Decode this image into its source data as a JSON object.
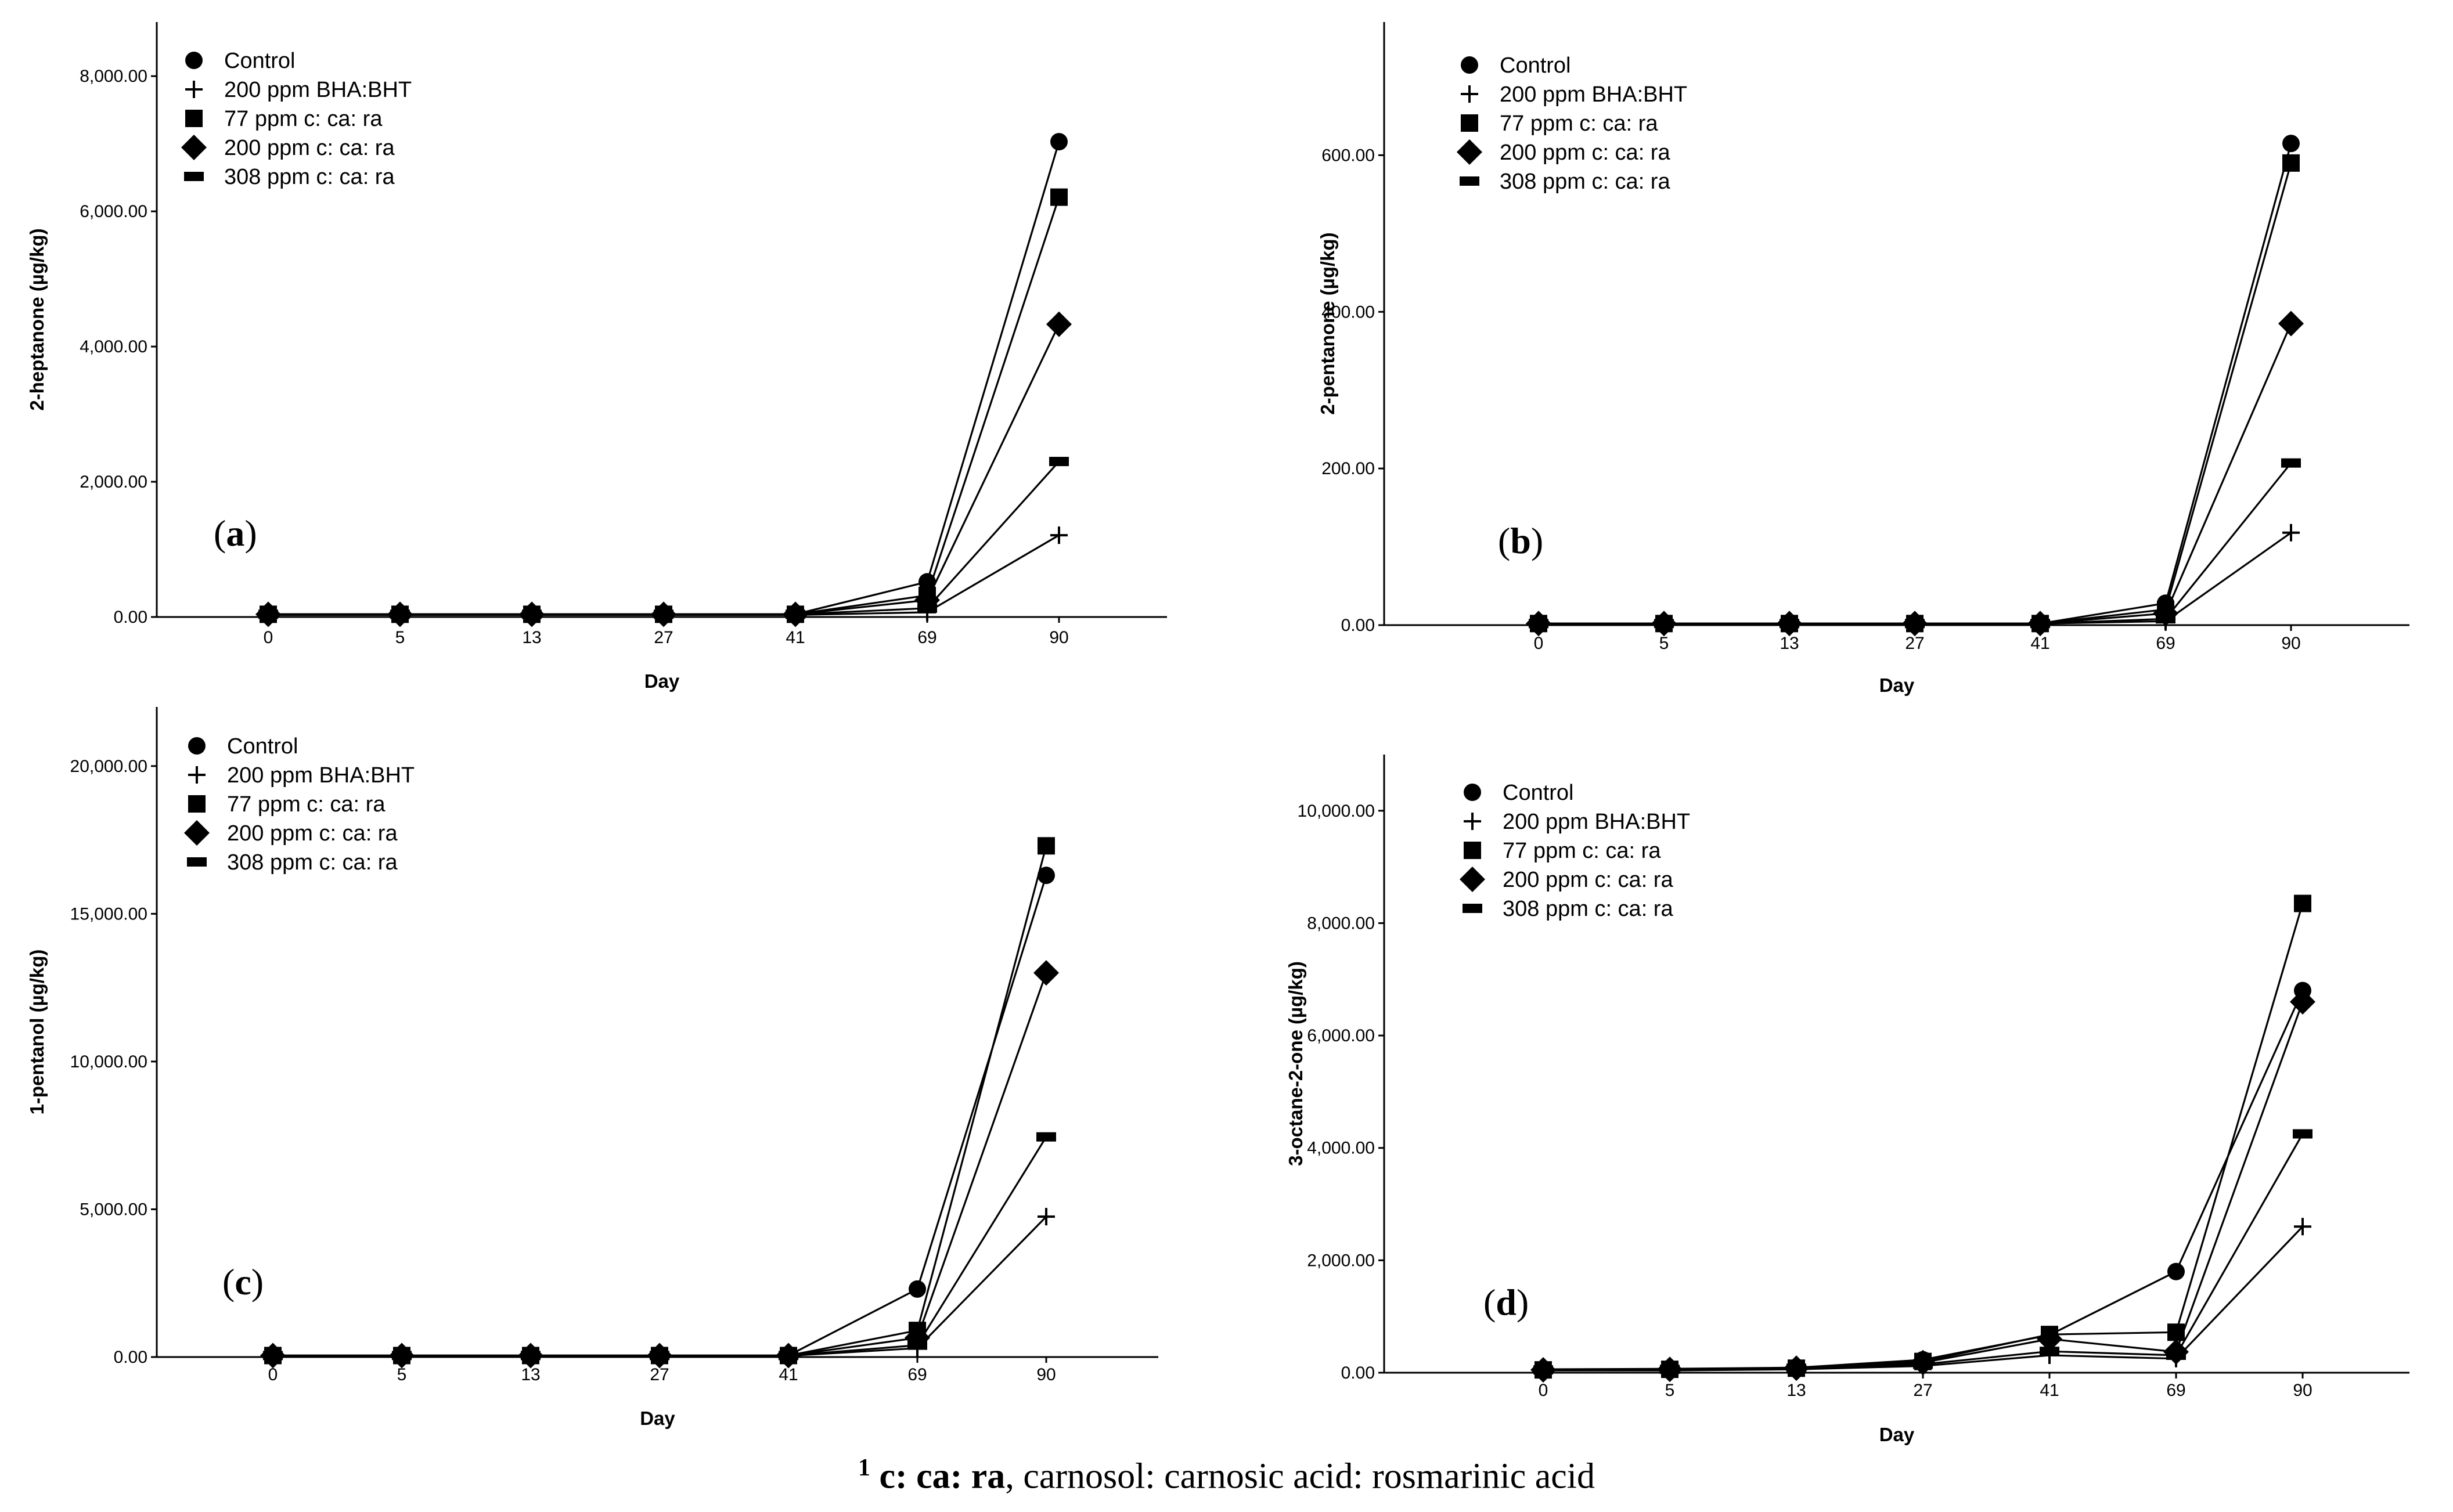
{
  "chart_data": [
    {
      "type": "line",
      "panel": "(a)",
      "panel_letter": "a",
      "xlabel": "Day",
      "ylabel": "2-heptanone (µg/kg)",
      "categories": [
        "0",
        "5",
        "13",
        "27",
        "41",
        "69",
        "90"
      ],
      "ylim": [
        0,
        8800
      ],
      "yticks": [
        0,
        2000,
        4000,
        6000,
        8000
      ],
      "ytick_labels": [
        "0.00",
        "2,000.00",
        "4,000.00",
        "6,000.00",
        "8,000.00"
      ],
      "legend_position": "top-left",
      "series": [
        {
          "name": "Control",
          "marker": "circle",
          "values": [
            40,
            40,
            40,
            40,
            40,
            520,
            7030
          ]
        },
        {
          "name": "200 ppm BHA:BHT",
          "marker": "plus",
          "values": [
            30,
            30,
            30,
            30,
            30,
            70,
            1210
          ]
        },
        {
          "name": "77 ppm c: ca: ra",
          "marker": "square",
          "values": [
            40,
            40,
            40,
            40,
            40,
            320,
            6210
          ]
        },
        {
          "name": "200 ppm c: ca: ra",
          "marker": "diamond",
          "values": [
            40,
            40,
            40,
            40,
            40,
            250,
            4330
          ]
        },
        {
          "name": "308 ppm c: ca: ra",
          "marker": "dash",
          "values": [
            40,
            40,
            40,
            40,
            40,
            130,
            2300
          ]
        }
      ]
    },
    {
      "type": "line",
      "panel": "(b)",
      "panel_letter": "b",
      "xlabel": "Day",
      "ylabel": "2-pentanone (µg/kg)",
      "categories": [
        "0",
        "5",
        "13",
        "27",
        "41",
        "69",
        "90"
      ],
      "ylim": [
        0,
        770
      ],
      "yticks": [
        0,
        200,
        400,
        600
      ],
      "ytick_labels": [
        "0.00",
        "200.00",
        "400.00",
        "600.00"
      ],
      "legend_position": "top-left",
      "series": [
        {
          "name": "Control",
          "marker": "circle",
          "values": [
            2,
            2,
            2,
            2,
            2,
            28,
            615
          ]
        },
        {
          "name": "200 ppm BHA:BHT",
          "marker": "plus",
          "values": [
            2,
            2,
            2,
            2,
            2,
            5,
            118
          ]
        },
        {
          "name": "77 ppm c: ca: ra",
          "marker": "square",
          "values": [
            2,
            2,
            2,
            2,
            2,
            20,
            590
          ]
        },
        {
          "name": "200 ppm c: ca: ra",
          "marker": "diamond",
          "values": [
            2,
            2,
            2,
            2,
            2,
            15,
            385
          ]
        },
        {
          "name": "308 ppm c: ca: ra",
          "marker": "dash",
          "values": [
            2,
            2,
            2,
            2,
            2,
            8,
            207
          ]
        }
      ]
    },
    {
      "type": "line",
      "panel": "(c)",
      "panel_letter": "c",
      "xlabel": "Day",
      "ylabel": "1-pentanol (µg/kg)",
      "categories": [
        "0",
        "5",
        "13",
        "27",
        "41",
        "69",
        "90"
      ],
      "ylim": [
        0,
        22000
      ],
      "yticks": [
        0,
        5000,
        10000,
        15000,
        20000
      ],
      "ytick_labels": [
        "0.00",
        "5,000.00",
        "10,000.00",
        "15,000.00",
        "20,000.00"
      ],
      "legend_position": "top-left",
      "series": [
        {
          "name": "Control",
          "marker": "circle",
          "values": [
            50,
            50,
            50,
            50,
            50,
            2300,
            16300
          ]
        },
        {
          "name": "200 ppm BHA:BHT",
          "marker": "plus",
          "values": [
            40,
            40,
            40,
            40,
            40,
            300,
            4750
          ]
        },
        {
          "name": "77 ppm c: ca: ra",
          "marker": "square",
          "values": [
            50,
            50,
            50,
            50,
            50,
            900,
            17300
          ]
        },
        {
          "name": "200 ppm c: ca: ra",
          "marker": "diamond",
          "values": [
            50,
            50,
            50,
            50,
            50,
            650,
            13000
          ]
        },
        {
          "name": "308 ppm c: ca: ra",
          "marker": "dash",
          "values": [
            50,
            50,
            50,
            50,
            50,
            400,
            7450
          ]
        }
      ]
    },
    {
      "type": "line",
      "panel": "(d)",
      "panel_letter": "d",
      "xlabel": "Day",
      "ylabel": "3-octane-2-one (µg/kg)",
      "categories": [
        "0",
        "5",
        "13",
        "27",
        "41",
        "69",
        "90"
      ],
      "ylim": [
        0,
        11000
      ],
      "yticks": [
        0,
        2000,
        4000,
        6000,
        8000,
        10000
      ],
      "ytick_labels": [
        "0.00",
        "2,000.00",
        "4,000.00",
        "6,000.00",
        "8,000.00",
        "10,000.00"
      ],
      "legend_position": "top-left",
      "series": [
        {
          "name": "Control",
          "marker": "circle",
          "values": [
            60,
            70,
            90,
            230,
            670,
            1800,
            6800
          ]
        },
        {
          "name": "200 ppm BHA:BHT",
          "marker": "plus",
          "values": [
            40,
            40,
            60,
            120,
            310,
            250,
            2600
          ]
        },
        {
          "name": "77 ppm c: ca: ra",
          "marker": "square",
          "values": [
            50,
            60,
            80,
            200,
            680,
            720,
            8350
          ]
        },
        {
          "name": "200 ppm c: ca: ra",
          "marker": "diamond",
          "values": [
            50,
            60,
            80,
            180,
            600,
            370,
            6600
          ]
        },
        {
          "name": "308 ppm c: ca: ra",
          "marker": "dash",
          "values": [
            50,
            60,
            80,
            150,
            380,
            310,
            4250
          ]
        }
      ]
    }
  ],
  "footnote": {
    "superscript": "1",
    "abbrev": "c: ca: ra",
    "text": ", carnosol: carnosic acid: rosmarinic acid"
  }
}
